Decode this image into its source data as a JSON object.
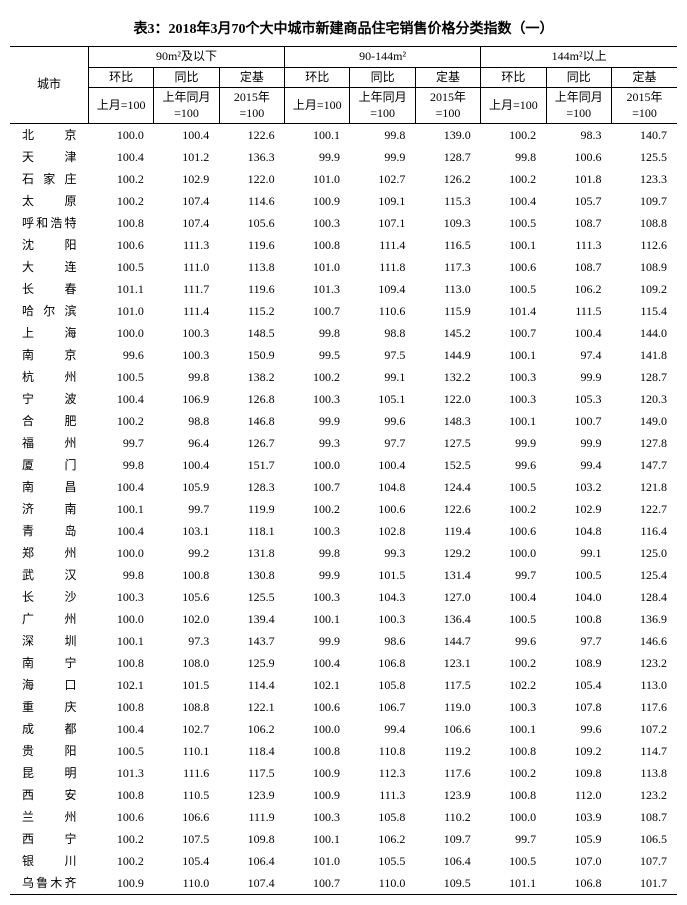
{
  "title": "表3：2018年3月70个大中城市新建商品住宅销售价格分类指数（一）",
  "col_city": "城市",
  "groups": [
    "90m²及以下",
    "90-144m²",
    "144m²以上"
  ],
  "sub_headers": {
    "hb": "环比",
    "tb": "同比",
    "dj": "定基",
    "hb2": "上月=100",
    "tb2": "上年同月=100",
    "dj2": "2015年=100"
  },
  "rows": [
    {
      "city": "北　　京",
      "v": [
        "100.0",
        "100.4",
        "122.6",
        "100.1",
        "99.8",
        "139.0",
        "100.2",
        "98.3",
        "140.7"
      ]
    },
    {
      "city": "天　　津",
      "v": [
        "100.4",
        "101.2",
        "136.3",
        "99.9",
        "99.9",
        "128.7",
        "99.8",
        "100.6",
        "125.5"
      ]
    },
    {
      "city": "石 家 庄",
      "v": [
        "100.2",
        "102.9",
        "122.0",
        "101.0",
        "102.7",
        "126.2",
        "100.2",
        "101.8",
        "123.3"
      ]
    },
    {
      "city": "太　　原",
      "v": [
        "100.2",
        "107.4",
        "114.6",
        "100.9",
        "109.1",
        "115.3",
        "100.4",
        "105.7",
        "109.7"
      ]
    },
    {
      "city": "呼和浩特",
      "v": [
        "100.8",
        "107.4",
        "105.6",
        "100.3",
        "107.1",
        "109.3",
        "100.5",
        "108.7",
        "108.8"
      ]
    },
    {
      "city": "沈　　阳",
      "v": [
        "100.6",
        "111.3",
        "119.6",
        "100.8",
        "111.4",
        "116.5",
        "100.1",
        "111.3",
        "112.6"
      ]
    },
    {
      "city": "大　　连",
      "v": [
        "100.5",
        "111.0",
        "113.8",
        "101.0",
        "111.8",
        "117.3",
        "100.6",
        "108.7",
        "108.9"
      ]
    },
    {
      "city": "长　　春",
      "v": [
        "101.1",
        "111.7",
        "119.6",
        "101.3",
        "109.4",
        "113.0",
        "100.5",
        "106.2",
        "109.2"
      ]
    },
    {
      "city": "哈 尔 滨",
      "v": [
        "101.0",
        "111.4",
        "115.2",
        "100.7",
        "110.6",
        "115.9",
        "101.4",
        "111.5",
        "115.4"
      ]
    },
    {
      "city": "上　　海",
      "v": [
        "100.0",
        "100.3",
        "148.5",
        "99.8",
        "98.8",
        "145.2",
        "100.7",
        "100.4",
        "144.0"
      ]
    },
    {
      "city": "南　　京",
      "v": [
        "99.6",
        "100.3",
        "150.9",
        "99.5",
        "97.5",
        "144.9",
        "100.1",
        "97.4",
        "141.8"
      ]
    },
    {
      "city": "杭　　州",
      "v": [
        "100.5",
        "99.8",
        "138.2",
        "100.2",
        "99.1",
        "132.2",
        "100.3",
        "99.9",
        "128.7"
      ]
    },
    {
      "city": "宁　　波",
      "v": [
        "100.4",
        "106.9",
        "126.8",
        "100.3",
        "105.1",
        "122.0",
        "100.3",
        "105.3",
        "120.3"
      ]
    },
    {
      "city": "合　　肥",
      "v": [
        "100.2",
        "98.8",
        "146.8",
        "99.9",
        "99.6",
        "148.3",
        "100.1",
        "100.7",
        "149.0"
      ]
    },
    {
      "city": "福　　州",
      "v": [
        "99.7",
        "96.4",
        "126.7",
        "99.3",
        "97.7",
        "127.5",
        "99.9",
        "99.9",
        "127.8"
      ]
    },
    {
      "city": "厦　　门",
      "v": [
        "99.8",
        "100.4",
        "151.7",
        "100.0",
        "100.4",
        "152.5",
        "99.6",
        "99.4",
        "147.7"
      ]
    },
    {
      "city": "南　　昌",
      "v": [
        "100.4",
        "105.9",
        "128.3",
        "100.7",
        "104.8",
        "124.4",
        "100.5",
        "103.2",
        "121.8"
      ]
    },
    {
      "city": "济　　南",
      "v": [
        "100.1",
        "99.7",
        "119.9",
        "100.2",
        "100.6",
        "122.6",
        "100.2",
        "102.9",
        "122.7"
      ]
    },
    {
      "city": "青　　岛",
      "v": [
        "100.4",
        "103.1",
        "118.1",
        "100.3",
        "102.8",
        "119.4",
        "100.6",
        "104.8",
        "116.4"
      ]
    },
    {
      "city": "郑　　州",
      "v": [
        "100.0",
        "99.2",
        "131.8",
        "99.8",
        "99.3",
        "129.2",
        "100.0",
        "99.1",
        "125.0"
      ]
    },
    {
      "city": "武　　汉",
      "v": [
        "99.8",
        "100.8",
        "130.8",
        "99.9",
        "101.5",
        "131.4",
        "99.7",
        "100.5",
        "125.4"
      ]
    },
    {
      "city": "长　　沙",
      "v": [
        "100.3",
        "105.6",
        "125.5",
        "100.3",
        "104.3",
        "127.0",
        "100.4",
        "104.0",
        "128.4"
      ]
    },
    {
      "city": "广　　州",
      "v": [
        "100.0",
        "102.0",
        "139.4",
        "100.1",
        "100.3",
        "136.4",
        "100.5",
        "100.8",
        "136.9"
      ]
    },
    {
      "city": "深　　圳",
      "v": [
        "100.1",
        "97.3",
        "143.7",
        "99.9",
        "98.6",
        "144.7",
        "99.6",
        "97.7",
        "146.6"
      ]
    },
    {
      "city": "南　　宁",
      "v": [
        "100.8",
        "108.0",
        "125.9",
        "100.4",
        "106.8",
        "123.1",
        "100.2",
        "108.9",
        "123.2"
      ]
    },
    {
      "city": "海　　口",
      "v": [
        "102.1",
        "101.5",
        "114.4",
        "102.1",
        "105.8",
        "117.5",
        "102.2",
        "105.4",
        "113.0"
      ]
    },
    {
      "city": "重　　庆",
      "v": [
        "100.8",
        "108.8",
        "122.1",
        "100.6",
        "106.7",
        "119.0",
        "100.3",
        "107.8",
        "117.6"
      ]
    },
    {
      "city": "成　　都",
      "v": [
        "100.4",
        "102.7",
        "106.2",
        "100.0",
        "99.4",
        "106.6",
        "100.1",
        "99.6",
        "107.2"
      ]
    },
    {
      "city": "贵　　阳",
      "v": [
        "100.5",
        "110.1",
        "118.4",
        "100.8",
        "110.8",
        "119.2",
        "100.8",
        "109.2",
        "114.7"
      ]
    },
    {
      "city": "昆　　明",
      "v": [
        "101.3",
        "111.6",
        "117.5",
        "100.9",
        "112.3",
        "117.6",
        "100.2",
        "109.8",
        "113.8"
      ]
    },
    {
      "city": "西　　安",
      "v": [
        "100.8",
        "110.5",
        "123.9",
        "100.9",
        "111.3",
        "123.9",
        "100.8",
        "112.0",
        "123.2"
      ]
    },
    {
      "city": "兰　　州",
      "v": [
        "100.6",
        "106.6",
        "111.9",
        "100.3",
        "105.8",
        "110.2",
        "100.0",
        "103.9",
        "108.7"
      ]
    },
    {
      "city": "西　　宁",
      "v": [
        "100.2",
        "107.5",
        "109.8",
        "100.1",
        "106.2",
        "109.7",
        "99.7",
        "105.9",
        "106.5"
      ]
    },
    {
      "city": "银　　川",
      "v": [
        "100.2",
        "105.4",
        "106.4",
        "101.0",
        "105.5",
        "106.4",
        "100.5",
        "107.0",
        "107.7"
      ]
    },
    {
      "city": "乌鲁木齐",
      "v": [
        "100.9",
        "110.0",
        "107.4",
        "100.7",
        "110.0",
        "109.5",
        "101.1",
        "106.8",
        "101.7"
      ]
    }
  ]
}
